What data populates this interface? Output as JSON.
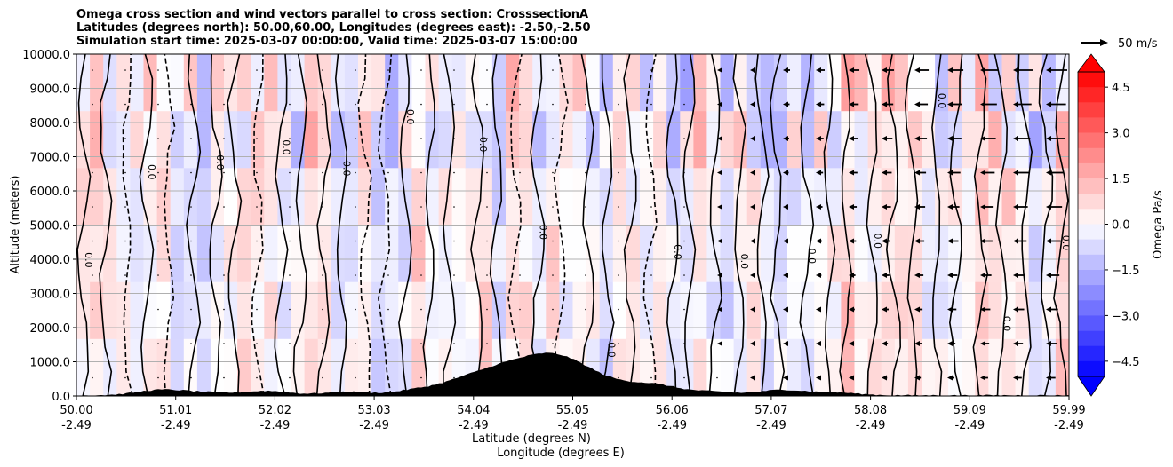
{
  "titles": [
    "Omega cross section and wind vectors parallel to cross section: CrosssectionA",
    "Latitudes (degrees north): 50.00,60.00, Longitudes (degrees east): -2.50,-2.50",
    "Simulation start time: 2025-03-07 00:00:00, Valid time: 2025-03-07 15:00:00"
  ],
  "chart_data": {
    "type": "heatmap",
    "title": "Omega cross section and wind vectors parallel to cross section: CrosssectionA",
    "ylabel": "Altitude (meters)",
    "xlabel_lat": "Latitude (degrees N)",
    "xlabel_lon": "Longitude (degrees E)",
    "ylim": [
      0,
      10000
    ],
    "xlim": [
      50.0,
      59.99
    ],
    "yticks": [
      {
        "value": 0,
        "label": "0.0"
      },
      {
        "value": 1000,
        "label": "1000.0"
      },
      {
        "value": 2000,
        "label": "2000.0"
      },
      {
        "value": 3000,
        "label": "3000.0"
      },
      {
        "value": 4000,
        "label": "4000.0"
      },
      {
        "value": 5000,
        "label": "5000.0"
      },
      {
        "value": 6000,
        "label": "6000.0"
      },
      {
        "value": 7000,
        "label": "7000.0"
      },
      {
        "value": 8000,
        "label": "8000.0"
      },
      {
        "value": 9000,
        "label": "9000.0"
      },
      {
        "value": 10000,
        "label": "10000.0"
      }
    ],
    "xticks": [
      {
        "lat": "50.00",
        "lon": "-2.49"
      },
      {
        "lat": "51.01",
        "lon": "-2.49"
      },
      {
        "lat": "52.02",
        "lon": "-2.49"
      },
      {
        "lat": "53.03",
        "lon": "-2.49"
      },
      {
        "lat": "54.04",
        "lon": "-2.49"
      },
      {
        "lat": "55.05",
        "lon": "-2.49"
      },
      {
        "lat": "56.06",
        "lon": "-2.49"
      },
      {
        "lat": "57.07",
        "lon": "-2.49"
      },
      {
        "lat": "58.08",
        "lon": "-2.49"
      },
      {
        "lat": "59.09",
        "lon": "-2.49"
      },
      {
        "lat": "59.99",
        "lon": "-2.49"
      }
    ],
    "colorbar": {
      "label": "Omega Pa/s",
      "range": [
        -5,
        5
      ],
      "ticks": [
        {
          "value": 4.5,
          "label": "4.5"
        },
        {
          "value": 3.0,
          "label": "3.0"
        },
        {
          "value": 1.5,
          "label": "1.5"
        },
        {
          "value": 0.0,
          "label": "0.0"
        },
        {
          "value": -1.5,
          "label": "−1.5"
        },
        {
          "value": -3.0,
          "label": "−3.0"
        },
        {
          "value": -4.5,
          "label": "−4.5"
        }
      ],
      "extend": "both",
      "neg_color": "#0000ff",
      "pos_color": "#ff0000"
    },
    "vector_key": {
      "label": "50 m/s",
      "speed": 50
    },
    "contour_label_text": "0.0",
    "contour_levels": [
      -1.0,
      0.0,
      1.0
    ],
    "grid": "horizontal"
  }
}
